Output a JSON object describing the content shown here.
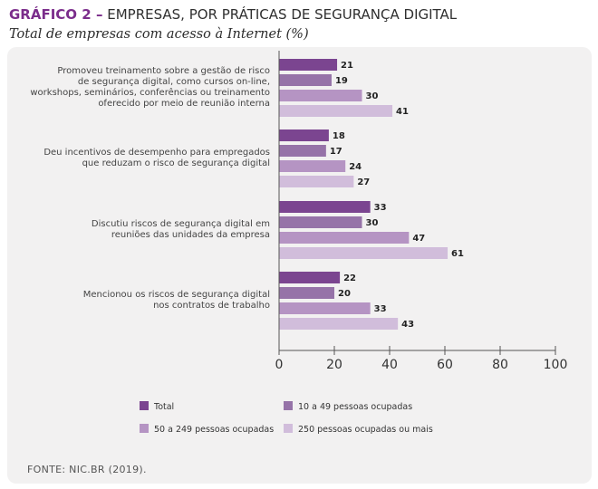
{
  "header": {
    "prefix": "GRÁFICO 2 –",
    "title": "EMPRESAS, POR PRÁTICAS DE SEGURANÇA DIGITAL",
    "subtitle": "Total de empresas com acesso à Internet (%)"
  },
  "source": "FONTE: NIC.BR (2019).",
  "colors": {
    "total": "#7b4590",
    "small": "#9673a8",
    "medium": "#b594c3",
    "large": "#d1bddb",
    "axis": "#555555",
    "panel": "#f2f1f1"
  },
  "chart_data": {
    "type": "bar",
    "orientation": "horizontal",
    "title": "EMPRESAS, POR PRÁTICAS DE SEGURANÇA DIGITAL",
    "subtitle": "Total de empresas com acesso à Internet (%)",
    "categories": [
      [
        "Promoveu treinamento sobre a gestão de risco",
        "de segurança digital, como cursos on-line,",
        "workshops, seminários, conferências ou treinamento",
        "oferecido por meio de reunião interna"
      ],
      [
        "Deu incentivos de desempenho para empregados",
        "que reduzam o risco de segurança digital"
      ],
      [
        "Discutiu riscos de segurança digital em",
        "reuniões das unidades da empresa"
      ],
      [
        "Mencionou os riscos de segurança digital",
        "nos contratos de trabalho"
      ]
    ],
    "series": [
      {
        "name": "Total",
        "values": [
          21,
          18,
          33,
          22
        ]
      },
      {
        "name": "10 a 49 pessoas ocupadas",
        "values": [
          19,
          17,
          30,
          20
        ]
      },
      {
        "name": "50 a 249 pessoas ocupadas",
        "values": [
          30,
          24,
          47,
          33
        ]
      },
      {
        "name": "250 pessoas ocupadas ou mais",
        "values": [
          41,
          27,
          61,
          43
        ]
      }
    ],
    "xlim": [
      0,
      100
    ],
    "xticks": [
      0,
      20,
      40,
      60,
      80,
      100
    ],
    "grid": false,
    "legend_position": "bottom"
  }
}
